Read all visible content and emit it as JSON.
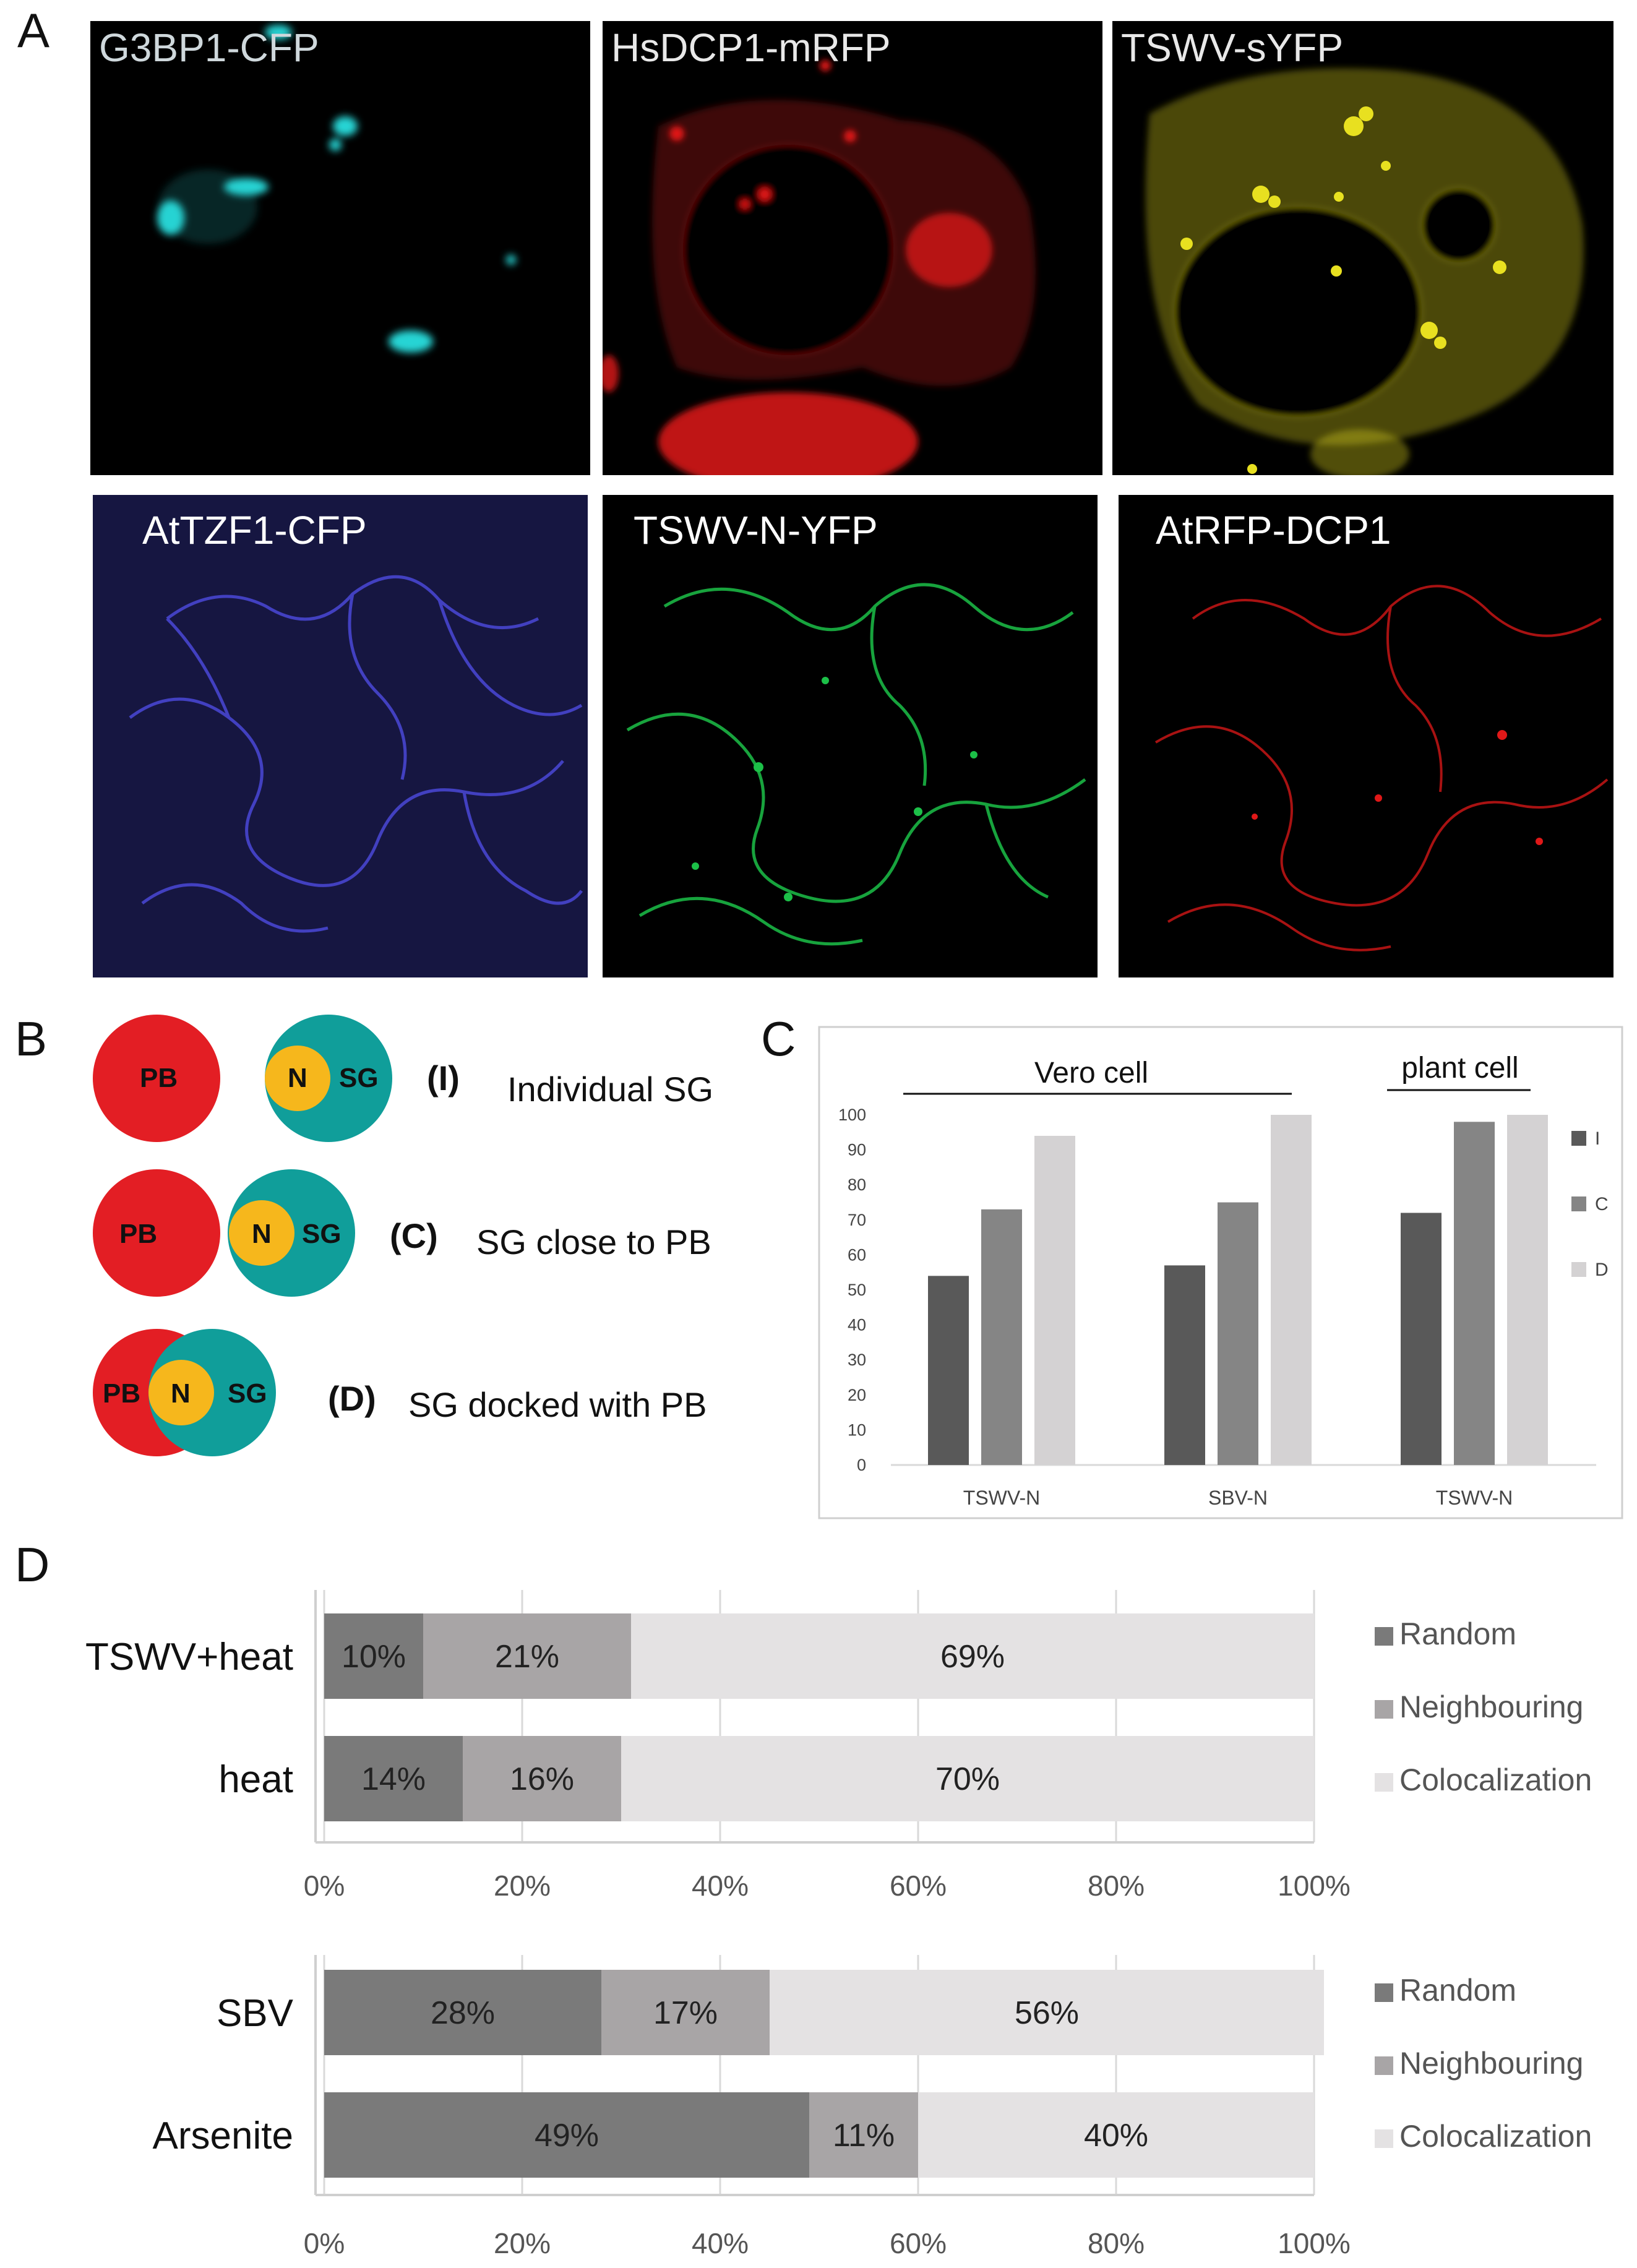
{
  "panels": {
    "a": "A",
    "b": "B",
    "c": "C",
    "d": "D"
  },
  "micrographs": [
    {
      "label": "G3BP1-CFP",
      "label_color": "#cfd8dc",
      "channel_color": "#28d4d4"
    },
    {
      "label": "HsDCP1-mRFP",
      "label_color": "#e8e8e8",
      "channel_color": "#e01818"
    },
    {
      "label": "TSWV-sYFP",
      "label_color": "#e8e8e8",
      "channel_color": "#e8e020"
    },
    {
      "label": "AtTZF1-CFP",
      "label_color": "#ffffff",
      "channel_color": "#4a48d8"
    },
    {
      "label": "TSWV-N-YFP",
      "label_color": "#ffffff",
      "channel_color": "#1cc048"
    },
    {
      "label": "AtRFP-DCP1",
      "label_color": "#ffffff",
      "channel_color": "#e01818"
    }
  ],
  "schematic": {
    "pb": "PB",
    "n": "N",
    "sg": "SG",
    "pb_color": "#e31e24",
    "sg_color": "#109e9a",
    "n_color": "#f6b71c",
    "rows": [
      {
        "code": "(I)",
        "desc": "Individual SG"
      },
      {
        "code": "(C)",
        "desc": "SG close to PB"
      },
      {
        "code": "(D)",
        "desc": "SG docked with PB"
      }
    ]
  },
  "chart_data": [
    {
      "type": "bar",
      "title": "",
      "group_labels": [
        "Vero cell",
        "plant cell"
      ],
      "categories": [
        "TSWV-N",
        "SBV-N",
        "TSWV-N"
      ],
      "series": [
        {
          "name": "I",
          "color": "#595959",
          "values": [
            54,
            57,
            72
          ]
        },
        {
          "name": "C",
          "color": "#858585",
          "values": [
            73,
            75,
            98
          ]
        },
        {
          "name": "D",
          "color": "#d4d2d3",
          "values": [
            94,
            100,
            100
          ]
        }
      ],
      "yticks": [
        0,
        10,
        20,
        30,
        40,
        50,
        60,
        70,
        80,
        90,
        100
      ],
      "ylim": [
        0,
        100
      ],
      "legend": "right",
      "grid": false
    },
    {
      "type": "bar",
      "orientation": "horizontal-stacked",
      "categories": [
        "TSWV+heat",
        "heat"
      ],
      "series": [
        {
          "name": "Random",
          "color": "#7a7a7a",
          "values": [
            10,
            14
          ]
        },
        {
          "name": "Neighbouring",
          "color": "#a8a5a6",
          "values": [
            21,
            16
          ]
        },
        {
          "name": "Colocalization",
          "color": "#e4e2e3",
          "values": [
            69,
            70
          ]
        }
      ],
      "xticks": [
        "0%",
        "20%",
        "40%",
        "60%",
        "80%",
        "100%"
      ],
      "xlim": [
        0,
        100
      ],
      "legend": "right",
      "grid": true
    },
    {
      "type": "bar",
      "orientation": "horizontal-stacked",
      "categories": [
        "SBV",
        "Arsenite"
      ],
      "series": [
        {
          "name": "Random",
          "color": "#7a7a7a",
          "values": [
            28,
            49
          ]
        },
        {
          "name": "Neighbouring",
          "color": "#a8a5a6",
          "values": [
            17,
            11
          ]
        },
        {
          "name": "Colocalization",
          "color": "#e4e2e3",
          "values": [
            56,
            40
          ]
        }
      ],
      "xticks": [
        "0%",
        "20%",
        "40%",
        "60%",
        "80%",
        "100%"
      ],
      "xlim": [
        0,
        100
      ],
      "legend": "right",
      "grid": true
    }
  ]
}
